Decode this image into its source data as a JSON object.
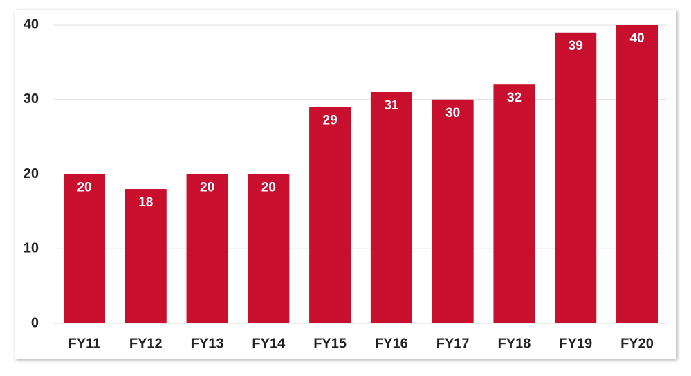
{
  "chart_data": {
    "type": "bar",
    "categories": [
      "FY11",
      "FY12",
      "FY13",
      "FY14",
      "FY15",
      "FY16",
      "FY17",
      "FY18",
      "FY19",
      "FY20"
    ],
    "values": [
      20,
      18,
      20,
      20,
      29,
      31,
      30,
      32,
      39,
      40
    ],
    "color": "#c8102e",
    "ylim": [
      0,
      40
    ],
    "yticks": [
      0,
      10,
      20,
      30,
      40
    ],
    "grid": true
  }
}
